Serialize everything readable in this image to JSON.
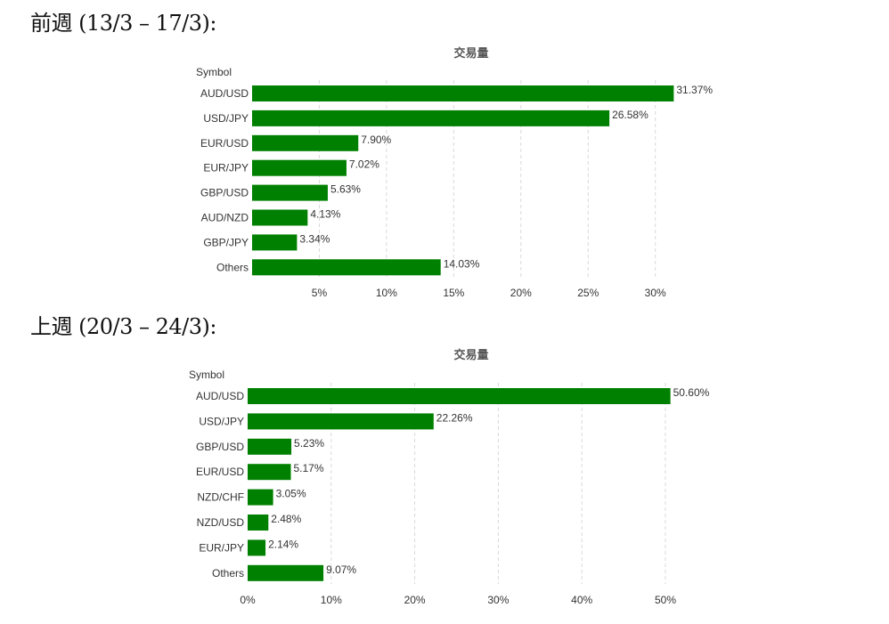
{
  "sections": [
    {
      "heading": "前週 (13/3 – 17/3):"
    },
    {
      "heading": "上週 (20/3 – 24/3):"
    }
  ],
  "colors": {
    "bar": "#008000"
  },
  "chart_data": [
    {
      "type": "bar",
      "orientation": "horizontal",
      "title": "交易量",
      "ylabel": "Symbol",
      "categories": [
        "AUD/USD",
        "USD/JPY",
        "EUR/USD",
        "EUR/JPY",
        "GBP/USD",
        "AUD/NZD",
        "GBP/JPY",
        "Others"
      ],
      "values": [
        31.37,
        26.58,
        7.9,
        7.02,
        5.63,
        4.13,
        3.34,
        14.03
      ],
      "value_labels": [
        "31.37%",
        "26.58%",
        "7.90%",
        "7.02%",
        "5.63%",
        "4.13%",
        "3.34%",
        "14.03%"
      ],
      "xlim": [
        0,
        32
      ],
      "xticks": [
        5,
        10,
        15,
        20,
        25,
        30
      ],
      "xtick_labels": [
        "5%",
        "10%",
        "15%",
        "20%",
        "25%",
        "30%"
      ],
      "grid": true
    },
    {
      "type": "bar",
      "orientation": "horizontal",
      "title": "交易量",
      "ylabel": "Symbol",
      "categories": [
        "AUD/USD",
        "USD/JPY",
        "GBP/USD",
        "EUR/USD",
        "NZD/CHF",
        "NZD/USD",
        "EUR/JPY",
        "Others"
      ],
      "values": [
        50.6,
        22.26,
        5.23,
        5.17,
        3.05,
        2.48,
        2.14,
        9.07
      ],
      "value_labels": [
        "50.60%",
        "22.26%",
        "5.23%",
        "5.17%",
        "3.05%",
        "2.48%",
        "2.14%",
        "9.07%"
      ],
      "xlim": [
        0,
        51
      ],
      "xticks": [
        0,
        10,
        20,
        30,
        40,
        50
      ],
      "xtick_labels": [
        "0%",
        "10%",
        "20%",
        "30%",
        "40%",
        "50%"
      ],
      "grid": true
    }
  ]
}
